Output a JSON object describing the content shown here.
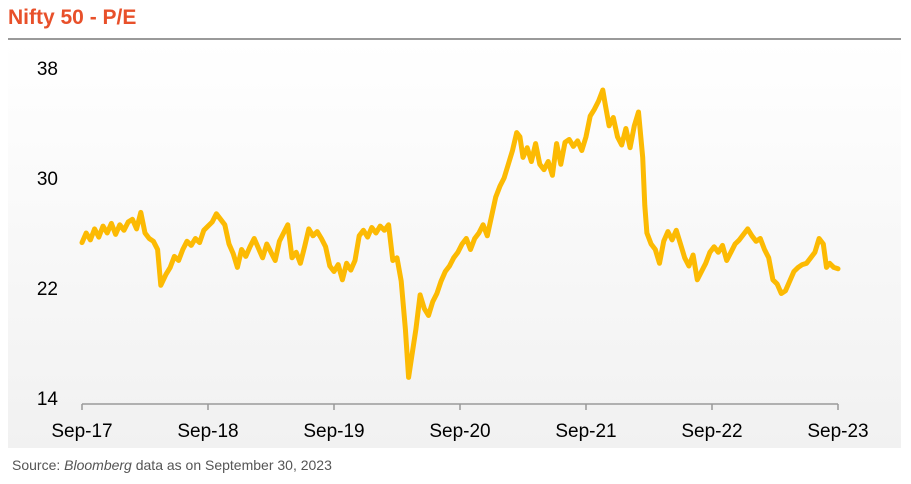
{
  "title": "Nifty 50 - P/E",
  "source": {
    "prefix": "Source: ",
    "name": "Bloomberg",
    "suffix": " data as on September 30, 2023"
  },
  "colors": {
    "line": "#fcba03",
    "title": "#e8502a",
    "axis": "#999999"
  },
  "chart_data": {
    "type": "line",
    "title": "Nifty 50 - P/E",
    "xlabel": "",
    "ylabel": "",
    "ylim": [
      14,
      38
    ],
    "yticks": [
      14,
      22,
      30,
      38
    ],
    "xlim": [
      0,
      72.2
    ],
    "xticks": [
      {
        "x": 0,
        "label": "Sep-17"
      },
      {
        "x": 12,
        "label": "Sep-18"
      },
      {
        "x": 24,
        "label": "Sep-19"
      },
      {
        "x": 36,
        "label": "Sep-20"
      },
      {
        "x": 48,
        "label": "Sep-21"
      },
      {
        "x": 60,
        "label": "Sep-22"
      },
      {
        "x": 72,
        "label": "Sep-23"
      }
    ],
    "grid": false,
    "legend": "none",
    "series": [
      {
        "values": [
          [
            0.0,
            25.3
          ],
          [
            0.4,
            26.0
          ],
          [
            0.8,
            25.5
          ],
          [
            1.2,
            26.3
          ],
          [
            1.6,
            25.7
          ],
          [
            2.0,
            26.5
          ],
          [
            2.4,
            26.0
          ],
          [
            2.8,
            26.7
          ],
          [
            3.2,
            25.9
          ],
          [
            3.6,
            26.6
          ],
          [
            4.0,
            26.2
          ],
          [
            4.4,
            26.8
          ],
          [
            4.8,
            27.0
          ],
          [
            5.2,
            26.3
          ],
          [
            5.6,
            27.5
          ],
          [
            6.0,
            26.0
          ],
          [
            6.4,
            25.6
          ],
          [
            6.8,
            25.4
          ],
          [
            7.2,
            24.8
          ],
          [
            7.5,
            22.2
          ],
          [
            8.0,
            23.0
          ],
          [
            8.4,
            23.5
          ],
          [
            8.8,
            24.3
          ],
          [
            9.2,
            24.0
          ],
          [
            9.6,
            24.8
          ],
          [
            10.0,
            25.4
          ],
          [
            10.4,
            25.1
          ],
          [
            10.8,
            25.6
          ],
          [
            11.2,
            25.3
          ],
          [
            11.6,
            26.2
          ],
          [
            12.0,
            26.5
          ],
          [
            12.4,
            26.8
          ],
          [
            12.8,
            27.4
          ],
          [
            13.2,
            27.0
          ],
          [
            13.6,
            26.6
          ],
          [
            14.0,
            25.2
          ],
          [
            14.4,
            24.5
          ],
          [
            14.8,
            23.5
          ],
          [
            15.2,
            24.8
          ],
          [
            15.6,
            24.3
          ],
          [
            16.0,
            25.0
          ],
          [
            16.4,
            25.6
          ],
          [
            16.8,
            24.9
          ],
          [
            17.2,
            24.2
          ],
          [
            17.6,
            25.2
          ],
          [
            18.0,
            24.6
          ],
          [
            18.4,
            24.0
          ],
          [
            18.8,
            25.4
          ],
          [
            19.2,
            26.0
          ],
          [
            19.6,
            26.6
          ],
          [
            20.0,
            24.2
          ],
          [
            20.4,
            24.6
          ],
          [
            20.8,
            23.8
          ],
          [
            21.2,
            25.0
          ],
          [
            21.6,
            26.3
          ],
          [
            22.0,
            25.8
          ],
          [
            22.4,
            26.1
          ],
          [
            22.8,
            25.6
          ],
          [
            23.2,
            25.0
          ],
          [
            23.6,
            23.6
          ],
          [
            24.0,
            23.2
          ],
          [
            24.4,
            23.7
          ],
          [
            24.8,
            22.6
          ],
          [
            25.2,
            23.8
          ],
          [
            25.6,
            23.3
          ],
          [
            26.0,
            24.0
          ],
          [
            26.4,
            25.8
          ],
          [
            26.8,
            26.2
          ],
          [
            27.2,
            25.7
          ],
          [
            27.6,
            26.4
          ],
          [
            28.0,
            26.0
          ],
          [
            28.4,
            26.5
          ],
          [
            28.8,
            26.2
          ],
          [
            29.2,
            26.6
          ],
          [
            29.6,
            24.0
          ],
          [
            30.0,
            24.2
          ],
          [
            30.4,
            22.5
          ],
          [
            30.8,
            19.0
          ],
          [
            31.1,
            15.5
          ],
          [
            31.4,
            17.0
          ],
          [
            31.8,
            19.0
          ],
          [
            32.2,
            21.5
          ],
          [
            32.6,
            20.5
          ],
          [
            33.0,
            20.0
          ],
          [
            33.4,
            21.0
          ],
          [
            33.8,
            21.6
          ],
          [
            34.2,
            22.5
          ],
          [
            34.6,
            23.2
          ],
          [
            35.0,
            23.6
          ],
          [
            35.4,
            24.2
          ],
          [
            35.8,
            24.6
          ],
          [
            36.2,
            25.2
          ],
          [
            36.6,
            25.6
          ],
          [
            37.0,
            24.8
          ],
          [
            37.4,
            25.6
          ],
          [
            37.8,
            26.0
          ],
          [
            38.2,
            26.6
          ],
          [
            38.6,
            25.8
          ],
          [
            39.0,
            27.2
          ],
          [
            39.4,
            28.6
          ],
          [
            39.8,
            29.4
          ],
          [
            40.2,
            30.0
          ],
          [
            40.6,
            31.0
          ],
          [
            41.0,
            32.0
          ],
          [
            41.4,
            33.3
          ],
          [
            41.7,
            33.0
          ],
          [
            42.0,
            31.5
          ],
          [
            42.4,
            32.2
          ],
          [
            42.8,
            31.2
          ],
          [
            43.2,
            32.5
          ],
          [
            43.6,
            31.0
          ],
          [
            44.0,
            30.6
          ],
          [
            44.4,
            31.2
          ],
          [
            44.8,
            30.2
          ],
          [
            45.2,
            32.5
          ],
          [
            45.6,
            31.0
          ],
          [
            46.0,
            32.6
          ],
          [
            46.4,
            32.8
          ],
          [
            46.8,
            32.3
          ],
          [
            47.2,
            32.7
          ],
          [
            47.6,
            32.0
          ],
          [
            48.0,
            33.0
          ],
          [
            48.4,
            34.5
          ],
          [
            48.8,
            35.0
          ],
          [
            49.2,
            35.6
          ],
          [
            49.6,
            36.4
          ],
          [
            49.8,
            35.5
          ],
          [
            50.2,
            33.8
          ],
          [
            50.6,
            34.4
          ],
          [
            51.0,
            33.0
          ],
          [
            51.4,
            32.4
          ],
          [
            51.8,
            33.6
          ],
          [
            52.2,
            32.2
          ],
          [
            52.6,
            33.8
          ],
          [
            53.0,
            34.8
          ],
          [
            53.4,
            31.5
          ],
          [
            53.6,
            28.0
          ],
          [
            53.8,
            26.0
          ],
          [
            54.2,
            25.2
          ],
          [
            54.6,
            24.8
          ],
          [
            55.0,
            23.8
          ],
          [
            55.4,
            25.4
          ],
          [
            55.8,
            26.1
          ],
          [
            56.2,
            25.5
          ],
          [
            56.6,
            26.2
          ],
          [
            57.0,
            25.2
          ],
          [
            57.4,
            24.2
          ],
          [
            57.8,
            23.6
          ],
          [
            58.2,
            24.4
          ],
          [
            58.6,
            22.6
          ],
          [
            59.0,
            23.2
          ],
          [
            59.4,
            23.8
          ],
          [
            59.8,
            24.6
          ],
          [
            60.2,
            25.0
          ],
          [
            60.6,
            24.6
          ],
          [
            61.0,
            25.1
          ],
          [
            61.4,
            24.0
          ],
          [
            61.8,
            24.6
          ],
          [
            62.2,
            25.2
          ],
          [
            62.6,
            25.5
          ],
          [
            63.0,
            25.9
          ],
          [
            63.4,
            26.3
          ],
          [
            63.8,
            25.8
          ],
          [
            64.2,
            25.4
          ],
          [
            64.6,
            25.6
          ],
          [
            65.0,
            24.8
          ],
          [
            65.4,
            24.2
          ],
          [
            65.8,
            22.6
          ],
          [
            66.2,
            22.3
          ],
          [
            66.6,
            21.6
          ],
          [
            67.0,
            21.8
          ],
          [
            67.4,
            22.5
          ],
          [
            67.8,
            23.2
          ],
          [
            68.2,
            23.5
          ],
          [
            68.6,
            23.7
          ],
          [
            69.0,
            23.8
          ],
          [
            69.4,
            24.2
          ],
          [
            69.8,
            24.6
          ],
          [
            70.2,
            25.6
          ],
          [
            70.6,
            25.2
          ],
          [
            70.9,
            23.5
          ],
          [
            71.2,
            23.8
          ],
          [
            71.6,
            23.5
          ],
          [
            72.0,
            23.4
          ]
        ]
      }
    ]
  }
}
